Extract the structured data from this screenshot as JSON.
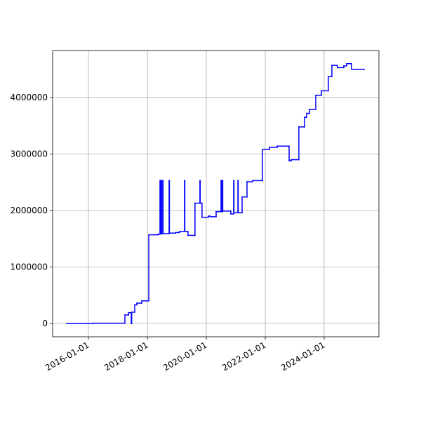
{
  "chart_data": {
    "type": "line",
    "step": "post",
    "color": "#0000ff",
    "grid": true,
    "xlim": [
      "2014-10-14",
      "2025-11-10"
    ],
    "ylim": [
      -236000,
      4833000
    ],
    "xticks": [
      "2016-01-01",
      "2018-01-01",
      "2020-01-01",
      "2022-01-01",
      "2024-01-01"
    ],
    "yticks": [
      0,
      1000000,
      2000000,
      3000000,
      4000000
    ],
    "x": [
      "2015-04-06",
      "2016-03-01",
      "2017-03-28",
      "2017-05-11",
      "2017-06-15",
      "2017-06-20",
      "2017-07-28",
      "2017-08-23",
      "2017-10-23",
      "2018-01-18",
      "2018-05-11",
      "2018-06-06",
      "2018-06-10",
      "2018-06-23",
      "2018-06-27",
      "2018-07-10",
      "2018-07-14",
      "2018-09-27",
      "2018-10-01",
      "2018-12-14",
      "2019-02-04",
      "2019-04-06",
      "2019-04-10",
      "2019-05-19",
      "2019-08-14",
      "2019-10-14",
      "2019-10-18",
      "2019-11-09",
      "2020-01-27",
      "2020-02-22",
      "2020-05-02",
      "2020-07-02",
      "2020-07-06",
      "2020-07-19",
      "2020-07-23",
      "2020-10-31",
      "2020-12-05",
      "2020-12-09",
      "2021-01-27",
      "2021-01-31",
      "2021-03-20",
      "2021-05-20",
      "2021-07-29",
      "2021-11-27",
      "2022-02-22",
      "2022-05-29",
      "2022-10-24",
      "2022-11-19",
      "2023-02-22",
      "2023-05-03",
      "2023-05-29",
      "2023-07-03",
      "2023-09-19",
      "2023-11-28",
      "2024-02-22",
      "2024-04-06",
      "2024-06-14",
      "2024-09-01",
      "2024-10-05",
      "2024-12-05",
      "2025-05-11"
    ],
    "values": [
      0,
      5000,
      150000,
      190000,
      0,
      200000,
      330000,
      360000,
      400000,
      1570000,
      1580000,
      2530000,
      1590000,
      2530000,
      1590000,
      2530000,
      1590000,
      2530000,
      1600000,
      1610000,
      1630000,
      2530000,
      1630000,
      1560000,
      2130000,
      2530000,
      2130000,
      1880000,
      1900000,
      1890000,
      1980000,
      2530000,
      1980000,
      2530000,
      1990000,
      1940000,
      2530000,
      1960000,
      2530000,
      1960000,
      2240000,
      2510000,
      2530000,
      3080000,
      3120000,
      3140000,
      2880000,
      2900000,
      3480000,
      3650000,
      3720000,
      3790000,
      4040000,
      4120000,
      4370000,
      4570000,
      4530000,
      4560000,
      4600000,
      4500000,
      4500000
    ]
  }
}
